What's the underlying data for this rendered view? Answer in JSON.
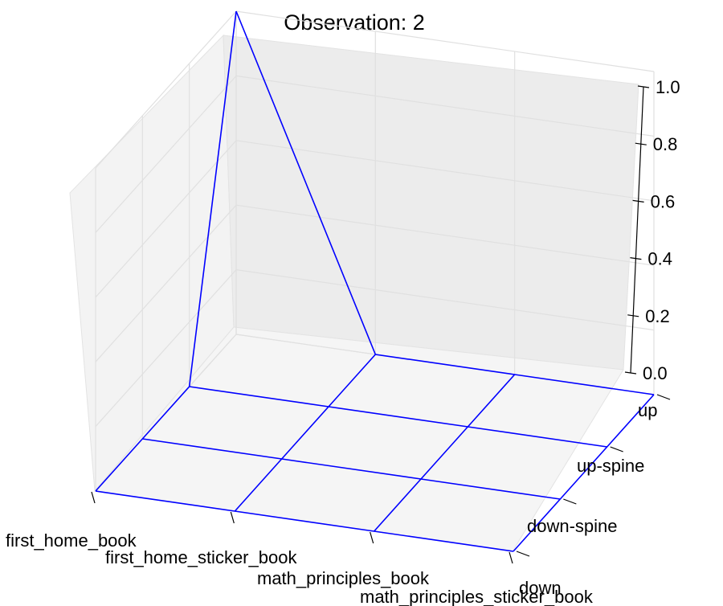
{
  "chart_data": {
    "type": "wireframe-3d",
    "title": "Observation: 2",
    "x_categories": [
      "first_home_book",
      "first_home_sticker_book",
      "math_principles_book",
      "math_principles_sticker_book"
    ],
    "y_categories": [
      "down",
      "down-spine",
      "up-spine",
      "up"
    ],
    "z_ticks": [
      "0.0",
      "0.2",
      "0.4",
      "0.6",
      "0.8",
      "1.0"
    ],
    "zlim": [
      0,
      1
    ],
    "grid": true,
    "z_values": [
      [
        0,
        0,
        0,
        0
      ],
      [
        0,
        0,
        0,
        0
      ],
      [
        0,
        0,
        0,
        0
      ],
      [
        1,
        0,
        0,
        0
      ]
    ],
    "series_color": "#0000ff"
  }
}
